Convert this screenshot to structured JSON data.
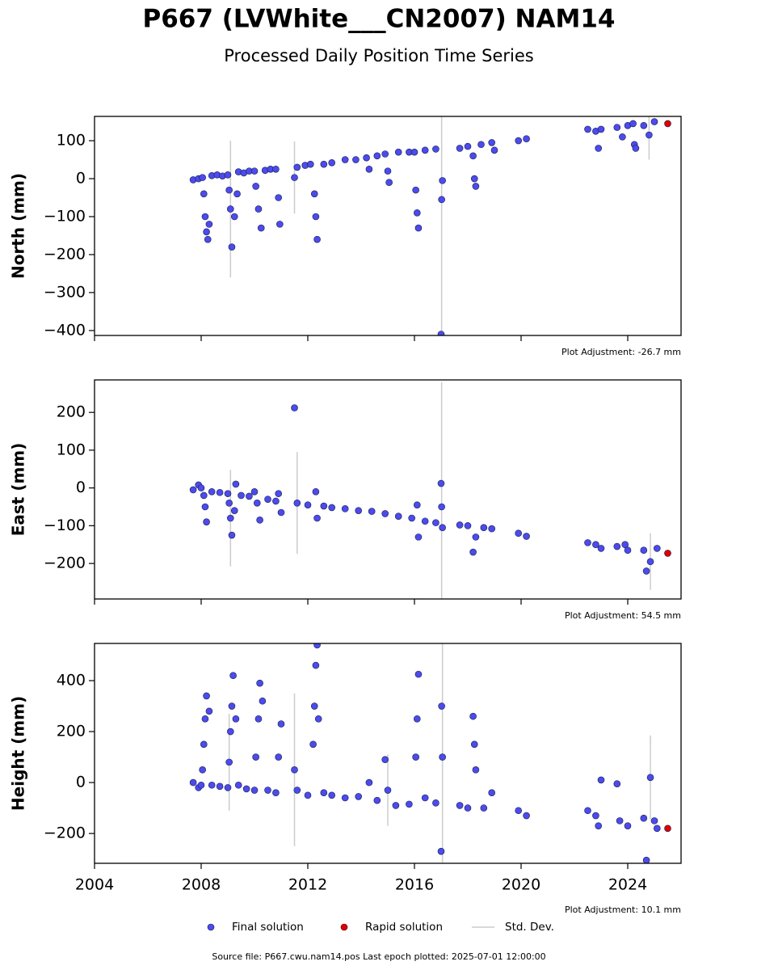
{
  "title": "P667 (LVWhite___CN2007) NAM14",
  "subtitle": "Processed Daily Position Time Series",
  "source": "Source file: P667.cwu.nam14.pos  Last epoch plotted: 2025-07-01 12:00:00",
  "chart_data": [
    {
      "type": "scatter",
      "ylabel": "North (mm)",
      "annotation": "Plot Adjustment: -26.7 mm",
      "xlim": [
        2004,
        2026
      ],
      "xticks": [
        2004,
        2008,
        2012,
        2016,
        2020,
        2024
      ],
      "xtick_labels": false,
      "ylim": [
        -413,
        164
      ],
      "yticks": [
        {
          "value": -400,
          "label": "−400"
        },
        {
          "value": -300,
          "label": "−300"
        },
        {
          "value": -200,
          "label": "−200"
        },
        {
          "value": -100,
          "label": "−100"
        },
        0,
        100
      ],
      "error_name": "Std. Dev.",
      "error_color": "#cccccc",
      "series": [
        {
          "name": "Final solution",
          "color": "#4b4bee",
          "x": [
            2007.7,
            2007.9,
            2008.05,
            2008.1,
            2008.15,
            2008.2,
            2008.25,
            2008.3,
            2008.4,
            2008.6,
            2008.8,
            2009.0,
            2009.05,
            2009.1,
            2009.15,
            2009.25,
            2009.35,
            2009.4,
            2009.6,
            2009.8,
            2010.0,
            2010.05,
            2010.15,
            2010.25,
            2010.4,
            2010.6,
            2010.8,
            2010.9,
            2010.95,
            2011.5,
            2011.6,
            2011.9,
            2012.1,
            2012.25,
            2012.3,
            2012.35,
            2012.6,
            2012.9,
            2013.4,
            2013.8,
            2014.2,
            2014.3,
            2014.6,
            2014.9,
            2015.0,
            2015.05,
            2015.4,
            2015.8,
            2016.0,
            2016.05,
            2016.1,
            2016.15,
            2016.4,
            2016.8,
            2017.0,
            2017.02,
            2017.05,
            2017.7,
            2018.0,
            2018.2,
            2018.25,
            2018.3,
            2018.5,
            2018.9,
            2019.0,
            2019.9,
            2020.2,
            2022.5,
            2022.8,
            2022.9,
            2023.0,
            2023.6,
            2023.8,
            2024.0,
            2024.2,
            2024.25,
            2024.3,
            2024.6,
            2024.8,
            2025.0
          ],
          "values": [
            -3,
            0,
            3,
            -40,
            -100,
            -140,
            -160,
            -120,
            8,
            10,
            7,
            10,
            -30,
            -80,
            -180,
            -100,
            -40,
            18,
            15,
            20,
            20,
            -20,
            -80,
            -130,
            22,
            25,
            25,
            -50,
            -120,
            3,
            30,
            35,
            38,
            -40,
            -100,
            -160,
            38,
            42,
            50,
            50,
            55,
            25,
            60,
            65,
            20,
            -10,
            70,
            70,
            70,
            -30,
            -90,
            -130,
            75,
            78,
            -410,
            -55,
            -5,
            80,
            85,
            60,
            0,
            -20,
            90,
            95,
            75,
            100,
            105,
            130,
            125,
            80,
            130,
            135,
            110,
            140,
            145,
            90,
            80,
            140,
            115,
            150
          ],
          "errors": [
            null,
            null,
            null,
            null,
            null,
            null,
            null,
            null,
            null,
            null,
            null,
            null,
            null,
            180,
            null,
            null,
            null,
            null,
            null,
            null,
            null,
            null,
            null,
            null,
            null,
            null,
            null,
            null,
            null,
            95,
            null,
            null,
            null,
            null,
            null,
            null,
            null,
            null,
            null,
            null,
            null,
            null,
            null,
            null,
            null,
            null,
            null,
            null,
            null,
            null,
            null,
            null,
            null,
            null,
            null,
            360,
            null,
            null,
            null,
            null,
            null,
            null,
            null,
            null,
            null,
            null,
            null,
            null,
            null,
            null,
            null,
            null,
            null,
            null,
            null,
            null,
            null,
            null,
            65,
            null
          ]
        },
        {
          "name": "Rapid solution",
          "color": "#e00000",
          "x": [
            2025.5
          ],
          "values": [
            145
          ],
          "errors": [
            null
          ]
        }
      ]
    },
    {
      "type": "scatter",
      "ylabel": "East (mm)",
      "annotation": "Plot Adjustment: 54.5 mm",
      "xlim": [
        2004,
        2026
      ],
      "xticks": [
        2004,
        2008,
        2012,
        2016,
        2020,
        2024
      ],
      "xtick_labels": false,
      "ylim": [
        -294,
        286
      ],
      "yticks": [
        {
          "value": -200,
          "label": "−200"
        },
        {
          "value": -100,
          "label": "−100"
        },
        0,
        100,
        200
      ],
      "error_color": "#cccccc",
      "series": [
        {
          "name": "Final solution",
          "color": "#4b4bee",
          "x": [
            2007.7,
            2007.9,
            2008.0,
            2008.1,
            2008.15,
            2008.2,
            2008.4,
            2008.7,
            2009.0,
            2009.05,
            2009.1,
            2009.15,
            2009.25,
            2009.3,
            2009.5,
            2009.8,
            2010.0,
            2010.1,
            2010.2,
            2010.5,
            2010.8,
            2010.9,
            2011.0,
            2011.5,
            2011.6,
            2012.0,
            2012.3,
            2012.35,
            2012.6,
            2012.9,
            2013.4,
            2013.9,
            2014.4,
            2014.9,
            2015.4,
            2015.9,
            2016.1,
            2016.15,
            2016.4,
            2016.8,
            2017.0,
            2017.02,
            2017.05,
            2017.7,
            2018.0,
            2018.2,
            2018.3,
            2018.6,
            2018.9,
            2019.9,
            2020.2,
            2022.5,
            2022.8,
            2023.0,
            2023.6,
            2023.9,
            2024.0,
            2024.6,
            2024.7,
            2024.85,
            2025.1
          ],
          "values": [
            -5,
            8,
            0,
            -20,
            -50,
            -90,
            -10,
            -12,
            -15,
            -40,
            -80,
            -125,
            -60,
            10,
            -20,
            -22,
            -10,
            -40,
            -85,
            -30,
            -35,
            -15,
            -65,
            212,
            -40,
            -45,
            -10,
            -80,
            -48,
            -52,
            -55,
            -60,
            -62,
            -68,
            -75,
            -80,
            -45,
            -130,
            -88,
            -92,
            12,
            -50,
            -105,
            -98,
            -100,
            -170,
            -130,
            -105,
            -108,
            -120,
            -128,
            -145,
            -150,
            -160,
            -155,
            -150,
            -165,
            -165,
            -220,
            -195,
            -160
          ],
          "errors": [
            null,
            null,
            null,
            null,
            null,
            null,
            null,
            null,
            null,
            null,
            128,
            null,
            null,
            null,
            null,
            null,
            null,
            null,
            null,
            null,
            null,
            null,
            null,
            null,
            135,
            null,
            null,
            null,
            null,
            null,
            null,
            null,
            null,
            null,
            null,
            null,
            null,
            null,
            null,
            null,
            null,
            330,
            null,
            null,
            null,
            null,
            null,
            null,
            null,
            null,
            null,
            null,
            null,
            null,
            null,
            null,
            null,
            null,
            null,
            75,
            null
          ]
        },
        {
          "name": "Rapid solution",
          "color": "#e00000",
          "x": [
            2025.5
          ],
          "values": [
            -173
          ],
          "errors": [
            null
          ]
        }
      ]
    },
    {
      "type": "scatter",
      "ylabel": "Height (mm)",
      "annotation": "Plot Adjustment: 10.1 mm",
      "xlim": [
        2004,
        2026
      ],
      "xticks": [
        2004,
        2008,
        2012,
        2016,
        2020,
        2024
      ],
      "xtick_labels": true,
      "ylim": [
        -317,
        546
      ],
      "yticks": [
        {
          "value": -200,
          "label": "−200"
        },
        0,
        200,
        400
      ],
      "error_color": "#cccccc",
      "series": [
        {
          "name": "Final solution",
          "color": "#4b4bee",
          "x": [
            2007.7,
            2007.9,
            2008.0,
            2008.05,
            2008.1,
            2008.15,
            2008.2,
            2008.3,
            2008.4,
            2008.7,
            2009.0,
            2009.05,
            2009.1,
            2009.15,
            2009.2,
            2009.3,
            2009.4,
            2009.7,
            2010.0,
            2010.05,
            2010.15,
            2010.2,
            2010.3,
            2010.5,
            2010.8,
            2010.9,
            2011.0,
            2011.5,
            2011.6,
            2012.0,
            2012.2,
            2012.25,
            2012.3,
            2012.35,
            2012.4,
            2012.6,
            2012.9,
            2013.4,
            2013.9,
            2014.3,
            2014.6,
            2014.9,
            2015.0,
            2015.3,
            2015.8,
            2016.05,
            2016.1,
            2016.15,
            2016.4,
            2016.8,
            2017.0,
            2017.02,
            2017.05,
            2017.7,
            2018.0,
            2018.2,
            2018.25,
            2018.3,
            2018.6,
            2018.9,
            2019.9,
            2020.2,
            2022.5,
            2022.8,
            2022.9,
            2023.0,
            2023.6,
            2023.7,
            2024.0,
            2024.6,
            2024.7,
            2024.85,
            2025.0,
            2025.1
          ],
          "values": [
            0,
            -20,
            -10,
            50,
            150,
            250,
            340,
            280,
            -10,
            -15,
            -20,
            80,
            200,
            300,
            420,
            250,
            -10,
            -25,
            -30,
            100,
            250,
            390,
            320,
            -30,
            -40,
            100,
            230,
            50,
            -30,
            -50,
            150,
            300,
            460,
            540,
            250,
            -40,
            -50,
            -60,
            -55,
            0,
            -70,
            90,
            -30,
            -90,
            -85,
            100,
            250,
            425,
            -60,
            -80,
            -270,
            300,
            100,
            -90,
            -100,
            260,
            150,
            50,
            -100,
            -40,
            -110,
            -130,
            -110,
            -130,
            -170,
            10,
            -5,
            -150,
            -170,
            -140,
            -305,
            20,
            -150,
            -180
          ],
          "errors": [
            null,
            null,
            null,
            null,
            null,
            null,
            null,
            null,
            null,
            null,
            null,
            190,
            null,
            null,
            null,
            null,
            null,
            null,
            null,
            null,
            null,
            null,
            null,
            null,
            null,
            null,
            null,
            300,
            null,
            null,
            null,
            null,
            null,
            null,
            null,
            null,
            null,
            null,
            null,
            null,
            null,
            null,
            140,
            null,
            null,
            null,
            null,
            null,
            null,
            null,
            null,
            null,
            450,
            null,
            null,
            null,
            null,
            null,
            null,
            null,
            null,
            null,
            null,
            null,
            null,
            null,
            null,
            null,
            null,
            null,
            null,
            165,
            null,
            null
          ]
        },
        {
          "name": "Rapid solution",
          "color": "#e00000",
          "x": [
            2025.5
          ],
          "values": [
            -180
          ],
          "errors": [
            null
          ]
        }
      ]
    }
  ]
}
